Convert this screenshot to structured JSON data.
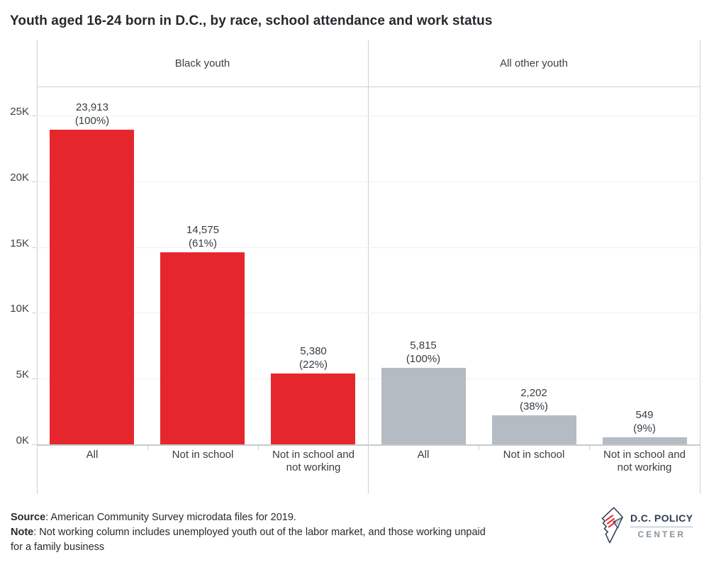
{
  "chart_data": {
    "type": "bar",
    "title": "Youth aged 16-24 born in D.C., by race, school attendance and work status",
    "xlabel": "",
    "ylabel": "",
    "ylim": [
      0,
      25000
    ],
    "grid": true,
    "legend": "none",
    "y_ticks": [
      {
        "value": 0,
        "label": "0K"
      },
      {
        "value": 5000,
        "label": "5K"
      },
      {
        "value": 10000,
        "label": "10K"
      },
      {
        "value": 15000,
        "label": "15K"
      },
      {
        "value": 20000,
        "label": "20K"
      },
      {
        "value": 25000,
        "label": "25K"
      }
    ],
    "categories": [
      [
        "All"
      ],
      [
        "Not in school"
      ],
      [
        "Not in school and",
        "not working"
      ]
    ],
    "panels": [
      {
        "label": "Black youth",
        "bar_color": "#e6262d",
        "bars": [
          {
            "category": "All",
            "value": 23913,
            "value_label": "23,913",
            "percent_label": "(100%)"
          },
          {
            "category": "Not in school",
            "value": 14575,
            "value_label": "14,575",
            "percent_label": "(61%)"
          },
          {
            "category": "Not in school and not working",
            "value": 5380,
            "value_label": "5,380",
            "percent_label": "(22%)"
          }
        ]
      },
      {
        "label": "All other youth",
        "bar_color": "#b4bbc2",
        "bars": [
          {
            "category": "All",
            "value": 5815,
            "value_label": "5,815",
            "percent_label": "(100%)"
          },
          {
            "category": "Not in school",
            "value": 2202,
            "value_label": "2,202",
            "percent_label": "(38%)"
          },
          {
            "category": "Not in school and not working",
            "value": 549,
            "value_label": "549",
            "percent_label": "(9%)"
          }
        ]
      }
    ]
  },
  "footer": {
    "source_label": "Source",
    "source_text": ": American Community Survey microdata files for 2019.",
    "note_label": "Note",
    "note_line1": ": Not working column includes unemployed youth out of the labor market, and those working unpaid",
    "note_line2": "for a family business"
  },
  "logo": {
    "line1": "D.C. POLICY",
    "line2": "CENTER",
    "navy": "#2b3e54",
    "gray": "#8b959d",
    "stripe_red": "#e6262d"
  },
  "colors": {
    "bar_red": "#e6262d",
    "bar_gray": "#b4bbc2",
    "gridline": "#eef0f1",
    "border": "#cdd0d2",
    "text": "#3b4248",
    "title_text": "#25292d"
  }
}
